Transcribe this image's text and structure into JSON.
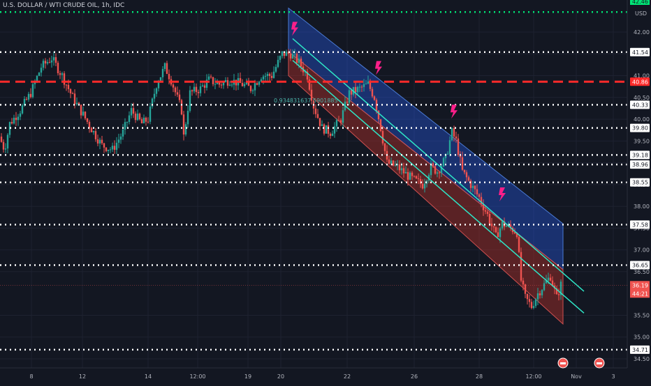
{
  "header": {
    "title": "U.S. DOLLAR / WTI CRUDE OIL, 1h, IDC"
  },
  "price_axis": {
    "currency": "USD"
  },
  "countdown": "44:21",
  "ruler_label": "0.934831637 5901885",
  "colors": {
    "background": "#131722",
    "up": "#26a69a",
    "down": "#ef5350",
    "level_line": "#ffffff",
    "key_level": "#ff2a2a",
    "channel_upper": "#2962ff",
    "channel_lower": "#b2312b",
    "channel_mid": "#2ee6c7",
    "bolt": "#ff1f8a",
    "green_line": "#00e676"
  },
  "chart_data": {
    "type": "candlestick",
    "symbol": "U.S. DOLLAR / WTI CRUDE OIL",
    "interval": "1h",
    "source": "IDC",
    "ylim": [
      34.3,
      42.4
    ],
    "y_ticks": [
      34.5,
      35.0,
      35.5,
      36.5,
      37.0,
      37.5,
      38.0,
      38.5,
      39.0,
      39.5,
      40.0,
      40.5,
      41.0,
      41.5,
      42.0
    ],
    "x_ticks": [
      "8",
      "12",
      "14",
      "12:00",
      "19",
      "20",
      "22",
      "26",
      "28",
      "12:00",
      "Nov",
      "3"
    ],
    "last_price": 36.19,
    "horizontal_levels": [
      {
        "price": 42.46,
        "label": "42.46",
        "style": "dotted",
        "color": "#00e676"
      },
      {
        "price": 41.54,
        "label": "41.54",
        "style": "dotted",
        "color": "#ffffff"
      },
      {
        "price": 40.86,
        "label": "40.86",
        "style": "dashed",
        "color": "#ff2a2a"
      },
      {
        "price": 40.33,
        "label": "40.33",
        "style": "dotted",
        "color": "#ffffff"
      },
      {
        "price": 39.8,
        "label": "39.80",
        "style": "dotted",
        "color": "#ffffff"
      },
      {
        "price": 39.18,
        "label": "39.18",
        "style": "dotted",
        "color": "#ffffff"
      },
      {
        "price": 38.96,
        "label": "38.96",
        "style": "dotted",
        "color": "#ffffff"
      },
      {
        "price": 38.55,
        "label": "38.55",
        "style": "dotted",
        "color": "#ffffff"
      },
      {
        "price": 37.58,
        "label": "37.58",
        "style": "dotted",
        "color": "#ffffff"
      },
      {
        "price": 36.65,
        "label": "36.65",
        "style": "dotted",
        "color": "#ffffff"
      },
      {
        "price": 34.71,
        "label": "34.71",
        "style": "dotted",
        "color": "#ffffff"
      }
    ],
    "price_path": [
      [
        0,
        39.6
      ],
      [
        0.5,
        39.3
      ],
      [
        1.0,
        39.9
      ],
      [
        2.0,
        40.2
      ],
      [
        3.0,
        40.6
      ],
      [
        4.0,
        41.2
      ],
      [
        5.0,
        41.4
      ],
      [
        6.0,
        41.0
      ],
      [
        7.0,
        40.5
      ],
      [
        8.0,
        40.1
      ],
      [
        9.0,
        39.7
      ],
      [
        9.8,
        39.4
      ],
      [
        10.8,
        39.3
      ],
      [
        11.8,
        39.7
      ],
      [
        12.6,
        40.2
      ],
      [
        13.6,
        39.9
      ],
      [
        14.2,
        40.0
      ],
      [
        15.0,
        40.8
      ],
      [
        15.8,
        41.2
      ],
      [
        16.4,
        40.9
      ],
      [
        17.4,
        40.2
      ],
      [
        17.6,
        39.6
      ],
      [
        18.2,
        40.6
      ],
      [
        19.2,
        40.7
      ],
      [
        20.0,
        40.9
      ],
      [
        21.0,
        40.8
      ],
      [
        22.0,
        40.9
      ],
      [
        23.2,
        40.8
      ],
      [
        24.0,
        40.7
      ],
      [
        25.0,
        41.0
      ],
      [
        26.0,
        41.0
      ],
      [
        27.0,
        41.5
      ],
      [
        27.8,
        41.5
      ],
      [
        28.6,
        41.3
      ],
      [
        29.4,
        41.0
      ],
      [
        30.0,
        40.3
      ],
      [
        30.8,
        39.8
      ],
      [
        31.6,
        39.7
      ],
      [
        32.6,
        40.0
      ],
      [
        33.4,
        40.6
      ],
      [
        34.4,
        40.7
      ],
      [
        35.2,
        40.8
      ],
      [
        35.8,
        40.5
      ],
      [
        36.4,
        39.8
      ],
      [
        37.0,
        39.0
      ],
      [
        38.0,
        38.9
      ],
      [
        39.0,
        38.7
      ],
      [
        39.6,
        38.6
      ],
      [
        40.4,
        38.5
      ],
      [
        41.2,
        38.9
      ],
      [
        41.8,
        38.8
      ],
      [
        42.6,
        39.1
      ],
      [
        43.2,
        39.7
      ],
      [
        43.6,
        39.5
      ],
      [
        44.2,
        38.8
      ],
      [
        45.0,
        38.5
      ],
      [
        45.8,
        38.2
      ],
      [
        46.6,
        37.8
      ],
      [
        47.4,
        37.3
      ],
      [
        48.0,
        37.6
      ],
      [
        48.8,
        37.5
      ],
      [
        49.4,
        37.4
      ],
      [
        49.8,
        36.3
      ],
      [
        50.2,
        35.9
      ],
      [
        50.8,
        35.7
      ],
      [
        51.4,
        36.0
      ],
      [
        52.0,
        36.2
      ],
      [
        52.6,
        36.4
      ],
      [
        53.2,
        35.9
      ],
      [
        53.6,
        36.2
      ]
    ],
    "channel": {
      "upper_top": [
        [
          27.4,
          42.55
        ],
        [
          53.6,
          37.6
        ]
      ],
      "mid": [
        [
          27.4,
          41.55
        ],
        [
          53.6,
          36.55
        ]
      ],
      "lower_bottom": [
        [
          27.4,
          41.0
        ],
        [
          53.6,
          35.3
        ]
      ],
      "trend_lines": [
        [
          [
            27.8,
            41.85
          ],
          [
            55.6,
            36.05
          ]
        ],
        [
          [
            27.8,
            41.35
          ],
          [
            55.6,
            35.55
          ]
        ]
      ]
    },
    "bolt_markers": [
      {
        "x": 28.0,
        "price": 41.85
      },
      {
        "x": 36.0,
        "price": 40.95
      },
      {
        "x": 43.2,
        "price": 39.95
      },
      {
        "x": 47.8,
        "price": 38.05
      }
    ],
    "x_range": [
      0,
      57
    ]
  }
}
